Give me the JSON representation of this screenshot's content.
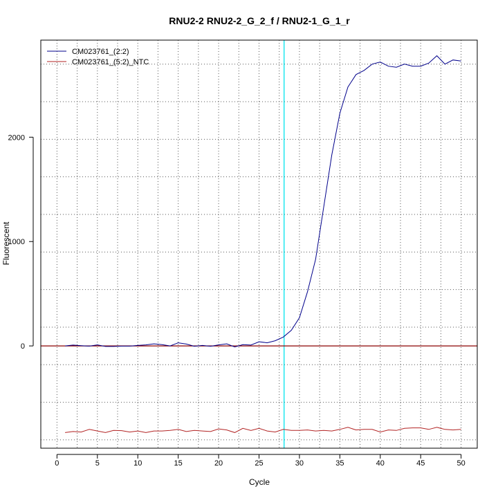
{
  "chart_data": {
    "type": "line",
    "title": "RNU2-2  RNU2-2_G_2_f / RNU2-1_G_1_r",
    "xlabel": "Cycle",
    "ylabel": "Fluorescent",
    "xlim": [
      -2,
      52
    ],
    "ylim": [
      -980,
      2930
    ],
    "x_ticks": [
      0,
      5,
      10,
      15,
      20,
      25,
      30,
      35,
      40,
      45,
      50
    ],
    "x_tick_labels": [
      "0",
      "5",
      "10",
      "15",
      "20",
      "25",
      "30",
      "35",
      "40",
      "45",
      "50"
    ],
    "y_ticks": [
      0,
      1000,
      2000
    ],
    "y_tick_labels": [
      "0",
      "1000",
      "2000"
    ],
    "grid": true,
    "legend_position": "top-left",
    "threshold_line": {
      "y": 0,
      "color": "#8b0000"
    },
    "cycle_threshold": {
      "x": 28.1,
      "color": "#00e5ee"
    },
    "x": [
      1,
      2,
      3,
      4,
      5,
      6,
      7,
      8,
      9,
      10,
      11,
      12,
      13,
      14,
      15,
      16,
      17,
      18,
      19,
      20,
      21,
      22,
      23,
      24,
      25,
      26,
      27,
      28,
      29,
      30,
      31,
      32,
      33,
      34,
      35,
      36,
      37,
      38,
      39,
      40,
      41,
      42,
      43,
      44,
      45,
      46,
      47,
      48,
      49,
      50
    ],
    "series": [
      {
        "name": "CM023761_(2:2)",
        "color": "#00008b",
        "values": [
          0,
          8,
          3,
          -2,
          10,
          -5,
          -5,
          -2,
          -2,
          5,
          10,
          20,
          12,
          0,
          30,
          18,
          -3,
          5,
          -3,
          10,
          20,
          -10,
          12,
          8,
          40,
          30,
          50,
          85,
          150,
          270,
          520,
          830,
          1330,
          1830,
          2230,
          2480,
          2600,
          2640,
          2700,
          2720,
          2680,
          2670,
          2700,
          2680,
          2680,
          2710,
          2780,
          2700,
          2740,
          2730
        ]
      },
      {
        "name": "CM023761_(5:2)_NTC",
        "color": "#b22222",
        "values": [
          -830,
          -820,
          -825,
          -800,
          -815,
          -830,
          -810,
          -812,
          -825,
          -815,
          -830,
          -815,
          -815,
          -810,
          -800,
          -820,
          -810,
          -815,
          -820,
          -795,
          -805,
          -830,
          -790,
          -810,
          -790,
          -815,
          -825,
          -800,
          -810,
          -810,
          -805,
          -815,
          -810,
          -815,
          -800,
          -780,
          -805,
          -800,
          -800,
          -825,
          -805,
          -810,
          -790,
          -785,
          -785,
          -800,
          -780,
          -800,
          -805,
          -800
        ]
      }
    ]
  }
}
